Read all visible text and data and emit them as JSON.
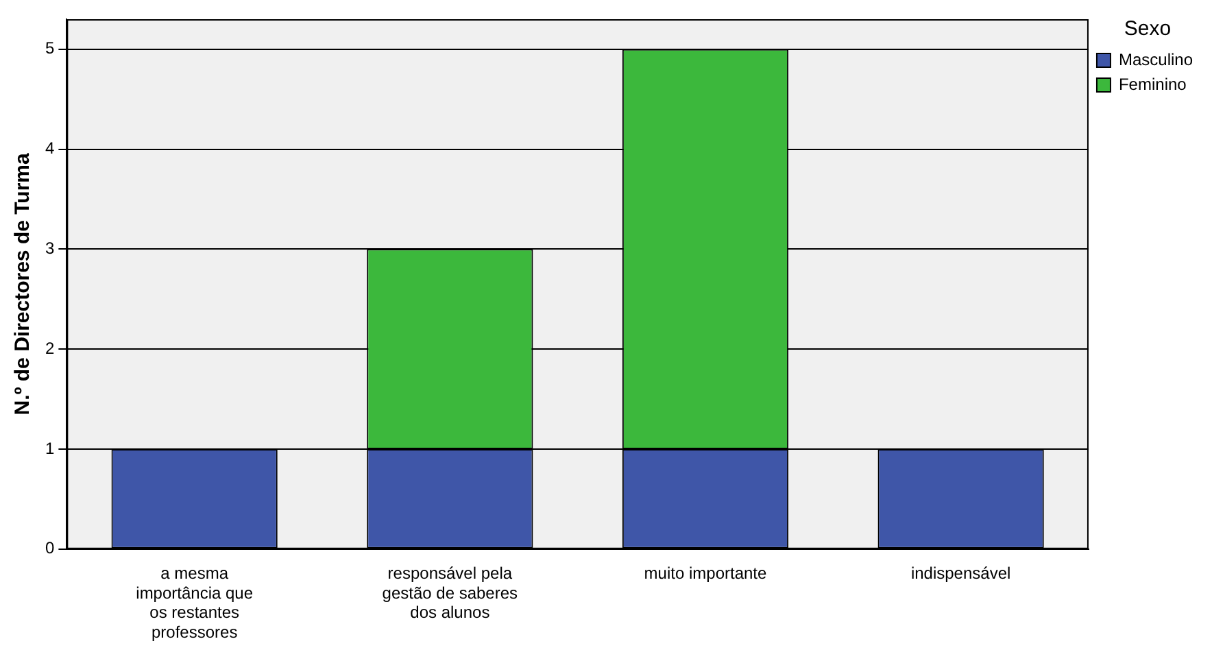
{
  "chart_data": {
    "type": "bar",
    "stacked": true,
    "ylabel": "N.º de Directores de Turma",
    "legend_title": "Sexo",
    "legend": "top right",
    "grid": "y",
    "categories": [
      "a mesma importância que os restantes professores",
      "responsável pela gestão de saberes dos alunos",
      "muito importante",
      "indispensável"
    ],
    "series": [
      {
        "name": "Masculino",
        "color": "#3f56a8",
        "values": [
          1,
          1,
          1,
          1
        ]
      },
      {
        "name": "Feminino",
        "color": "#3cb83c",
        "values": [
          0,
          2,
          4,
          0
        ]
      }
    ],
    "ylim": [
      0,
      5.3
    ],
    "yticks": [
      0,
      1,
      2,
      3,
      4,
      5
    ]
  }
}
